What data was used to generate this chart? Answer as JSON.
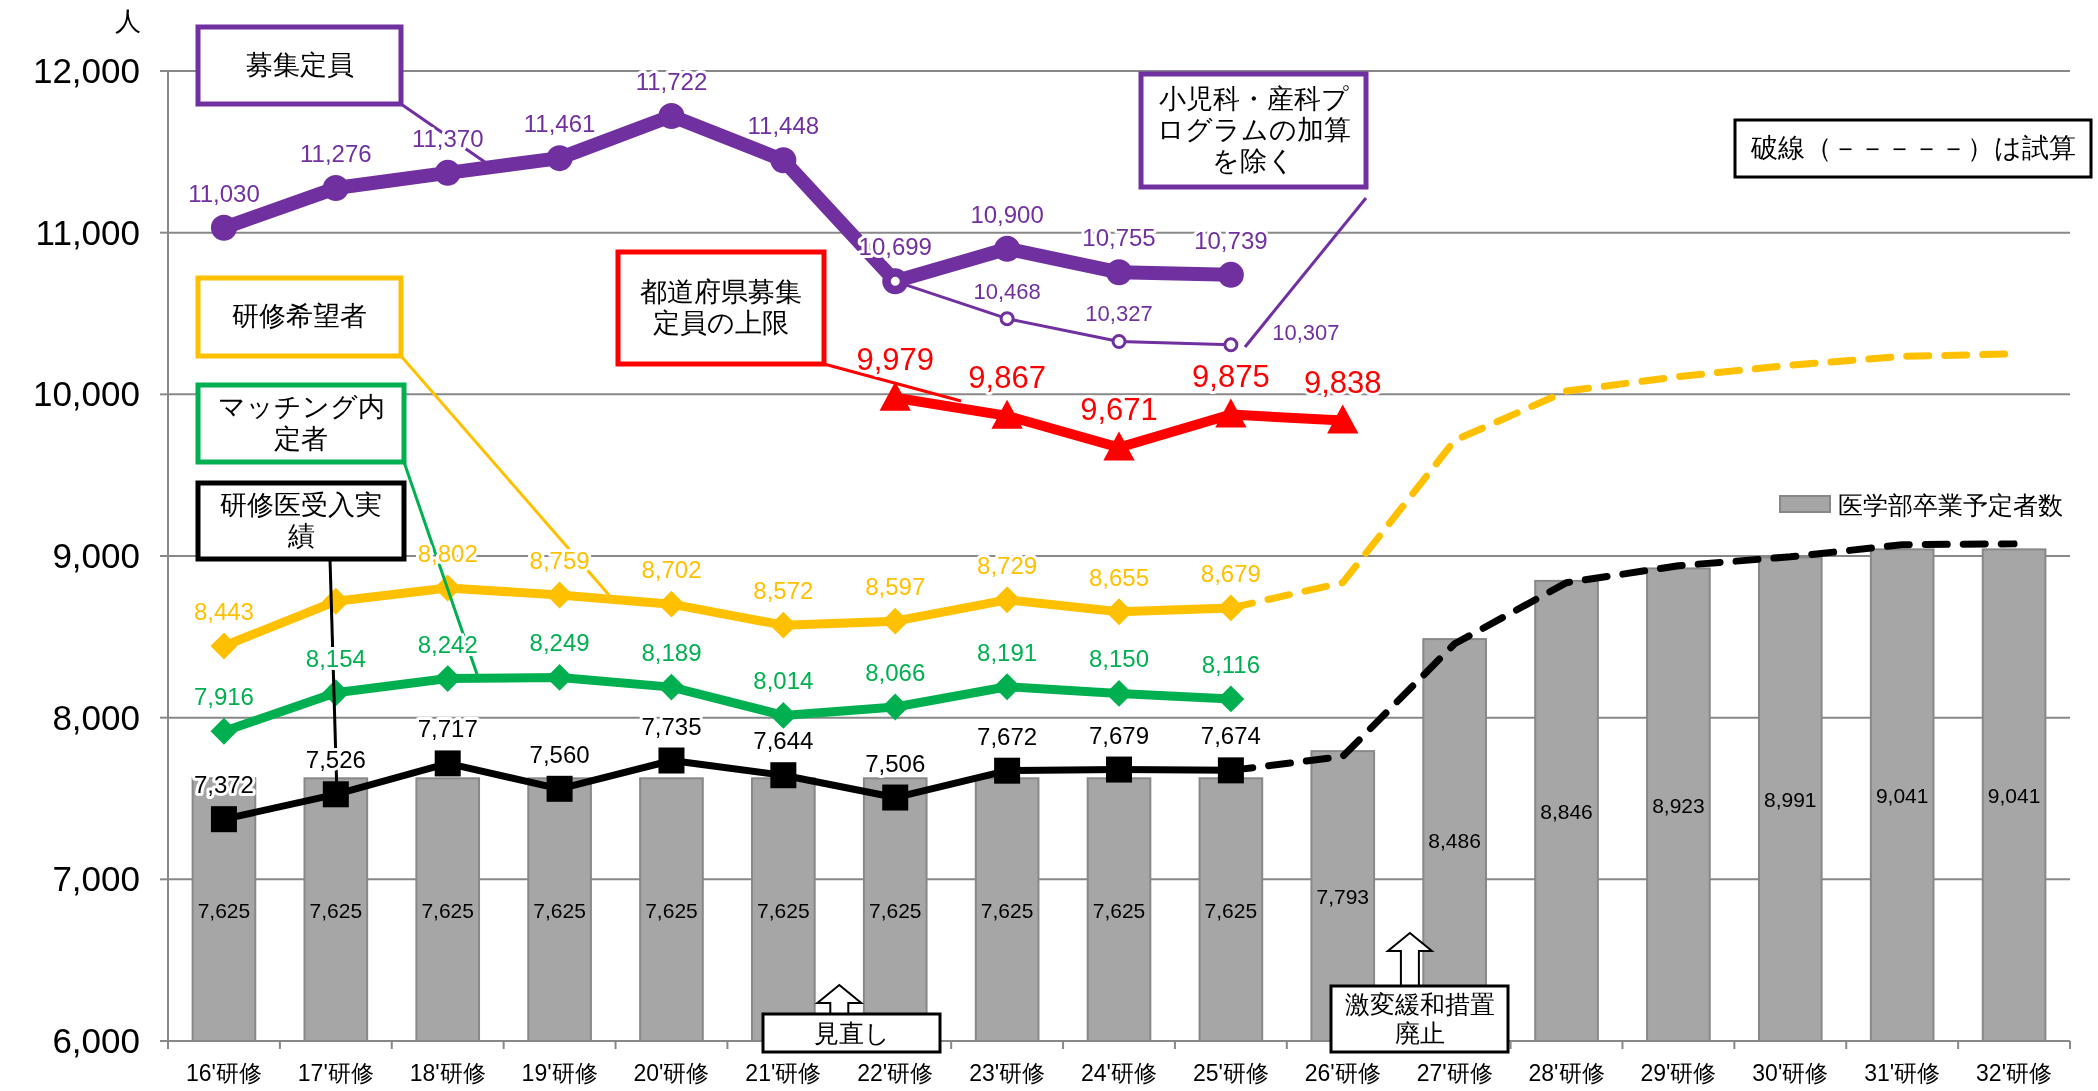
{
  "chart_data": {
    "type": "line",
    "ylabel": "人",
    "categories": [
      "16'研修",
      "17'研修",
      "18'研修",
      "19'研修",
      "20'研修",
      "21'研修",
      "22'研修",
      "23'研修",
      "24'研修",
      "25'研修",
      "26'研修",
      "27'研修",
      "28'研修",
      "29'研修",
      "30'研修",
      "31'研修",
      "32'研修"
    ],
    "ylim": [
      6000,
      12000
    ],
    "yticks": [
      {
        "value": 6000,
        "label": "6,000"
      },
      {
        "value": 7000,
        "label": "7,000"
      },
      {
        "value": 8000,
        "label": "8,000"
      },
      {
        "value": 9000,
        "label": "9,000"
      },
      {
        "value": 10000,
        "label": "10,000"
      },
      {
        "value": 11000,
        "label": "11,000"
      },
      {
        "value": 12000,
        "label": "12,000"
      }
    ],
    "grid": "y",
    "legend": "right",
    "series": [
      {
        "name": "医学部卒業予定者数",
        "type": "bar",
        "color": "#a6a6a6",
        "values": [
          7625,
          7625,
          7625,
          7625,
          7625,
          7625,
          7625,
          7625,
          7625,
          7625,
          7793,
          8486,
          8846,
          8923,
          8991,
          9041,
          9041
        ],
        "value_labels": [
          "7,625",
          "7,625",
          "7,625",
          "7,625",
          "7,625",
          "7,625",
          "7,625",
          "7,625",
          "7,625",
          "7,625",
          "7,793",
          "8,486",
          "8,846",
          "8,923",
          "8,991",
          "9,041",
          "9,041"
        ]
      },
      {
        "name": "募集定員",
        "color": "#7030a0",
        "marker": "circle",
        "values": [
          11030,
          11276,
          11370,
          11461,
          11722,
          11448,
          10699,
          10900,
          10755,
          10739,
          null,
          null,
          null,
          null,
          null,
          null,
          null
        ],
        "value_labels": [
          "11,030",
          "11,276",
          "11,370",
          "11,461",
          "11,722",
          "11,448",
          "10,699",
          "10,900",
          "10,755",
          "10,739",
          null,
          null,
          null,
          null,
          null,
          null,
          null
        ]
      },
      {
        "name": "小児科・産科プログラムの加算を除く",
        "color": "#7030a0",
        "marker": "circle",
        "values": [
          null,
          null,
          null,
          null,
          null,
          null,
          10699,
          10468,
          10327,
          10307,
          null,
          null,
          null,
          null,
          null,
          null,
          null
        ],
        "value_labels": [
          null,
          null,
          null,
          null,
          null,
          null,
          null,
          "10,468",
          "10,327",
          "10,307",
          null,
          null,
          null,
          null,
          null,
          null,
          null
        ]
      },
      {
        "name": "都道府県募集定員の上限",
        "color": "#ff0000",
        "marker": "triangle",
        "values": [
          null,
          null,
          null,
          null,
          null,
          null,
          9979,
          9867,
          9671,
          9875,
          9838,
          null,
          null,
          null,
          null,
          null,
          null
        ],
        "value_labels": [
          null,
          null,
          null,
          null,
          null,
          null,
          "9,979",
          "9,867",
          "9,671",
          "9,875",
          "9,838",
          null,
          null,
          null,
          null,
          null,
          null
        ]
      },
      {
        "name": "研修希望者",
        "color": "#ffc000",
        "marker": "diamond",
        "values": [
          8443,
          8720,
          8802,
          8759,
          8702,
          8572,
          8597,
          8729,
          8655,
          8679,
          null,
          null,
          null,
          null,
          null,
          null,
          null
        ],
        "value_labels": [
          "8,443",
          null,
          "8,802",
          "8,759",
          "8,702",
          "8,572",
          "8,597",
          "8,729",
          "8,655",
          "8,679",
          null,
          null,
          null,
          null,
          null,
          null,
          null
        ]
      },
      {
        "color": "#ffc000",
        "line_style": "dashed",
        "values": [
          null,
          null,
          null,
          null,
          null,
          null,
          null,
          null,
          null,
          8679,
          8835,
          9715,
          10020,
          10110,
          10180,
          10235,
          10250
        ]
      },
      {
        "name": "マッチング内定者",
        "color": "#00b050",
        "marker": "diamond",
        "values": [
          7916,
          8154,
          8242,
          8249,
          8189,
          8014,
          8066,
          8191,
          8150,
          8116,
          null,
          null,
          null,
          null,
          null,
          null,
          null
        ],
        "value_labels": [
          "7,916",
          "8,154",
          "8,242",
          "8,249",
          "8,189",
          "8,014",
          "8,066",
          "8,191",
          "8,150",
          "8,116",
          null,
          null,
          null,
          null,
          null,
          null,
          null
        ]
      },
      {
        "name": "研修医受入実績",
        "color": "#000000",
        "marker": "square",
        "values": [
          7372,
          7526,
          7717,
          7560,
          7735,
          7644,
          7506,
          7672,
          7679,
          7674,
          null,
          null,
          null,
          null,
          null,
          null,
          null
        ],
        "value_labels": [
          "7,372",
          "7,526",
          "7,717",
          "7,560",
          "7,735",
          "7,644",
          "7,506",
          "7,672",
          "7,679",
          "7,674",
          null,
          null,
          null,
          null,
          null,
          null,
          null
        ]
      },
      {
        "color": "#000000",
        "line_style": "dashed",
        "values": [
          null,
          null,
          null,
          null,
          null,
          null,
          null,
          null,
          null,
          7674,
          7760,
          8457,
          8835,
          8940,
          8995,
          9070,
          9075
        ]
      }
    ],
    "annotations": [
      "破線（－－－－－）は試算",
      "見直し",
      "激変緩和措置廃止"
    ]
  }
}
